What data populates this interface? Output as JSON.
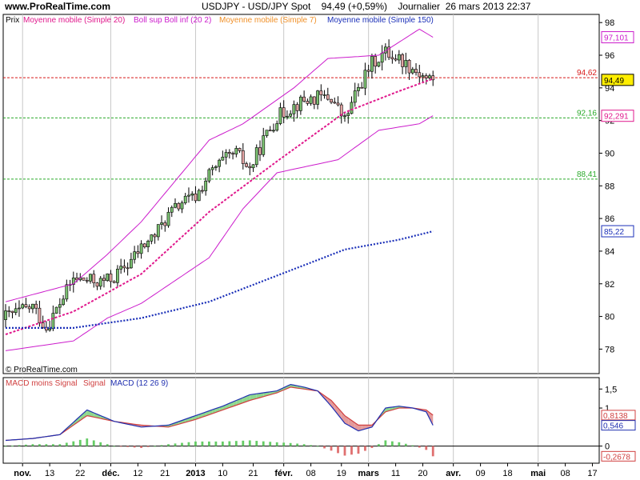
{
  "site": {
    "url": "www.ProRealTime.com",
    "copyright": "© ProRealTime.com"
  },
  "header": {
    "title": "USDJPY - USD/JPY Spot    94,49 (+0,59%)    Journalier  26 mars 2013 22:37"
  },
  "colors": {
    "bg": "#ffffff",
    "up": "#7ac070",
    "down": "#e4a4a4",
    "sma20": "#e0188c",
    "boll": "#cc1ccc",
    "sma7": "#f09028",
    "sma150": "#1a2fb8",
    "resist": "#d81818",
    "support": "#2aaa2a",
    "macd_hist_pos": "#66cc66",
    "macd_hist_neg": "#e07070",
    "macd_line": "#2030b0",
    "signal_line": "#d04040"
  },
  "legend": {
    "prix": "Prix",
    "sma20": "Moyenne mobile (Simple 20)",
    "boll": "Boll sup Boll inf (20 2)",
    "sma7": "Moyenne mobile (Simple 7)",
    "sma150": "Moyenne mobile (Simple 150)"
  },
  "macd_legend": {
    "moins": "MACD moins Signal",
    "signal": "Signal",
    "macd": "MACD (12 26 9)"
  },
  "levels": [
    {
      "value": 94.62,
      "label": "94,62",
      "color": "#d81818"
    },
    {
      "value": 92.16,
      "label": "92,16",
      "color": "#2aaa2a"
    },
    {
      "value": 88.41,
      "label": "88,41",
      "color": "#2aaa2a"
    }
  ],
  "price_boxes": [
    {
      "value": 97.101,
      "label": "97,101",
      "color": "#cc1ccc",
      "fill": "#ffffff"
    },
    {
      "value": 94.49,
      "label": "94,49",
      "color": "#000000",
      "fill": "#ffee00"
    },
    {
      "value": 92.291,
      "label": "92,291",
      "color": "#e0188c",
      "fill": "#ffffff"
    },
    {
      "value": 85.22,
      "label": "85,22",
      "color": "#1a2fb8",
      "fill": "#ffffff"
    }
  ],
  "macd_boxes": [
    {
      "value": 0.8138,
      "label": "0,8138",
      "color": "#d04040"
    },
    {
      "value": 0.546,
      "label": "0,546",
      "color": "#2030b0"
    },
    {
      "value": -0.2678,
      "label": "-0,2678",
      "color": "#d04040"
    }
  ],
  "chart_data": {
    "type": "candlestick",
    "title": "USDJPY - USD/JPY Spot",
    "price_axis": {
      "ylim": [
        76.5,
        98.5
      ],
      "ticks": [
        78,
        80,
        82,
        84,
        86,
        88,
        90,
        92,
        94,
        96,
        98
      ]
    },
    "macd_axis": {
      "ylim": [
        -0.45,
        1.8
      ],
      "ticks": [
        {
          "value": 1.5,
          "label": "1,5"
        },
        {
          "value": 1,
          "label": "1"
        },
        {
          "value": 0,
          "label": "0"
        }
      ]
    },
    "x_ticks": [
      {
        "day": 5,
        "label": "nov.",
        "bold": true
      },
      {
        "day": 13,
        "label": "13",
        "bold": false
      },
      {
        "day": 22,
        "label": "22",
        "bold": false
      },
      {
        "day": 31,
        "label": "déc.",
        "bold": true
      },
      {
        "day": 39,
        "label": "12",
        "bold": false
      },
      {
        "day": 47,
        "label": "21",
        "bold": false
      },
      {
        "day": 56,
        "label": "2013",
        "bold": true
      },
      {
        "day": 64,
        "label": "10",
        "bold": false
      },
      {
        "day": 73,
        "label": "21",
        "bold": false
      },
      {
        "day": 82,
        "label": "févr.",
        "bold": true
      },
      {
        "day": 90,
        "label": "08",
        "bold": false
      },
      {
        "day": 99,
        "label": "19",
        "bold": false
      },
      {
        "day": 107,
        "label": "mars",
        "bold": true
      },
      {
        "day": 115,
        "label": "11",
        "bold": false
      },
      {
        "day": 123,
        "label": "20",
        "bold": false
      },
      {
        "day": 132,
        "label": "avr.",
        "bold": true
      },
      {
        "day": 140,
        "label": "09",
        "bold": false
      },
      {
        "day": 148,
        "label": "18",
        "bold": false
      },
      {
        "day": 157,
        "label": "mai",
        "bold": true
      },
      {
        "day": 165,
        "label": "08",
        "bold": false
      },
      {
        "day": 173,
        "label": "17",
        "bold": false
      }
    ],
    "month_lines": [
      5,
      31,
      56,
      82,
      107,
      132,
      157
    ],
    "close_days": [
      0,
      4,
      8,
      12,
      16,
      20,
      24,
      28,
      32,
      36,
      40,
      44,
      48,
      52,
      56,
      60,
      64,
      68,
      72,
      76,
      80,
      84,
      88,
      92,
      96,
      100,
      104,
      108,
      112,
      116,
      120,
      124,
      126
    ],
    "close_values": [
      80.0,
      80.3,
      80.6,
      79.3,
      80.8,
      82.3,
      82.2,
      82.1,
      82.4,
      83.2,
      84.2,
      85.0,
      86.2,
      87.0,
      87.3,
      88.7,
      89.5,
      90.0,
      89.0,
      90.8,
      92.2,
      92.8,
      93.2,
      93.4,
      93.4,
      92.0,
      94.0,
      95.5,
      96.2,
      95.8,
      95.2,
      94.6,
      94.49
    ],
    "sma150_days": [
      0,
      20,
      40,
      60,
      80,
      100,
      116,
      126
    ],
    "sma150_values": [
      79.3,
      79.3,
      79.9,
      80.9,
      82.5,
      84.1,
      84.7,
      85.22
    ],
    "sma20_days": [
      0,
      20,
      40,
      60,
      80,
      100,
      116,
      126
    ],
    "sma20_values": [
      78.9,
      80.3,
      82.6,
      86.4,
      89.5,
      92.5,
      93.8,
      94.56
    ],
    "boll_up_days": [
      0,
      20,
      30,
      40,
      60,
      70,
      85,
      95,
      110,
      122,
      126
    ],
    "boll_up_values": [
      80.9,
      82.0,
      83.8,
      85.8,
      90.8,
      91.8,
      94.0,
      95.8,
      96.0,
      97.6,
      97.101
    ],
    "boll_low_days": [
      0,
      20,
      30,
      40,
      60,
      70,
      80,
      98,
      110,
      122,
      126
    ],
    "boll_low_values": [
      77.9,
      78.5,
      79.9,
      80.8,
      83.6,
      86.6,
      88.8,
      89.6,
      91.4,
      91.8,
      92.291
    ],
    "macd_days": [
      0,
      8,
      16,
      24,
      32,
      40,
      48,
      56,
      64,
      72,
      80,
      84,
      88,
      92,
      96,
      100,
      104,
      108,
      112,
      116,
      120,
      124,
      126
    ],
    "macd_values": [
      0.15,
      0.2,
      0.3,
      0.95,
      0.65,
      0.5,
      0.55,
      0.8,
      1.05,
      1.35,
      1.45,
      1.62,
      1.55,
      1.45,
      1.05,
      0.6,
      0.4,
      0.5,
      1.0,
      1.05,
      1.0,
      0.9,
      0.546
    ],
    "signal_values": [
      0.15,
      0.2,
      0.3,
      0.8,
      0.65,
      0.55,
      0.5,
      0.7,
      0.95,
      1.2,
      1.4,
      1.55,
      1.5,
      1.45,
      1.2,
      0.8,
      0.55,
      0.55,
      0.9,
      1.0,
      1.0,
      0.95,
      0.8138
    ],
    "hist_values": [
      0.0,
      0.05,
      0.05,
      0.2,
      0.0,
      -0.05,
      0.05,
      0.12,
      0.12,
      0.15,
      0.1,
      0.08,
      0.05,
      0.0,
      -0.12,
      -0.25,
      -0.2,
      -0.05,
      0.15,
      0.1,
      0.02,
      -0.1,
      -0.2678
    ]
  }
}
